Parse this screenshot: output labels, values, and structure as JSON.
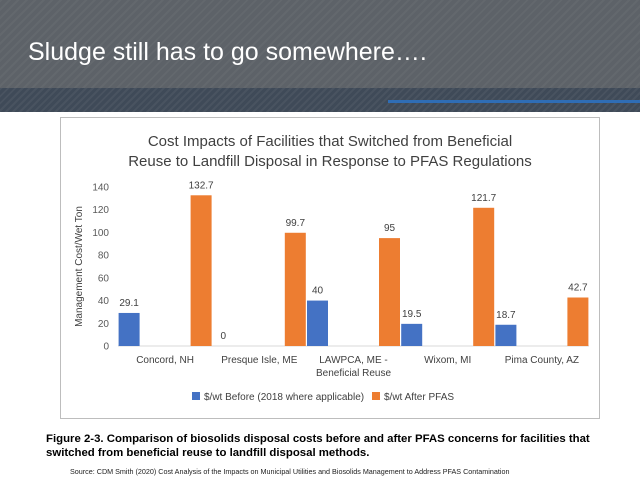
{
  "slide": {
    "title": "Sludge still has to go somewhere….",
    "caption": "Figure 2-3. Comparison of biosolids disposal costs before and after PFAS concerns for facilities that switched from beneficial reuse to landfill disposal methods.",
    "source": "Source: CDM Smith (2020) Cost Analysis of the Impacts on Municipal Utilities and Biosolids Management to Address PFAS Contamination"
  },
  "colors": {
    "before": "#4472c4",
    "after": "#ed7d31",
    "header": "#5d6268",
    "accent_rule": "#2f6db5"
  },
  "chart_data": {
    "type": "bar",
    "title": "Cost Impacts of Facilities that Switched from Beneficial Reuse to Landfill Disposal in Response to PFAS Regulations",
    "title_lines": [
      "Cost Impacts of Facilities that Switched from Beneficial",
      "Reuse to Landfill Disposal in Response to PFAS Regulations"
    ],
    "ylabel": "Management Cost/Wet Ton",
    "xlabel": "",
    "ylim": [
      0,
      140
    ],
    "yticks": [
      0,
      20,
      40,
      60,
      80,
      100,
      120,
      140
    ],
    "grid": false,
    "legend_position": "bottom",
    "categories": [
      "Concord, NH",
      "Presque Isle, ME",
      "LAWPCA, ME - Beneficial Reuse",
      "Wixom, MI",
      "Pima County, AZ"
    ],
    "category_lines": [
      [
        "Concord, NH"
      ],
      [
        "Presque Isle, ME"
      ],
      [
        "LAWPCA, ME -",
        "Beneficial Reuse"
      ],
      [
        "Wixom, MI"
      ],
      [
        "Pima County, AZ"
      ]
    ],
    "series": [
      {
        "name": "$/wt Before (2018 where applicable)",
        "values": [
          29.1,
          0,
          40,
          19.5,
          18.7
        ],
        "labels": [
          "29.1",
          "0",
          "40",
          "19.5",
          "18.7"
        ]
      },
      {
        "name": "$/wt After PFAS",
        "values": [
          132.7,
          99.7,
          95,
          121.7,
          42.7
        ],
        "labels": [
          "132.7",
          "99.7",
          "95",
          "121.7",
          "42.7"
        ]
      }
    ]
  }
}
